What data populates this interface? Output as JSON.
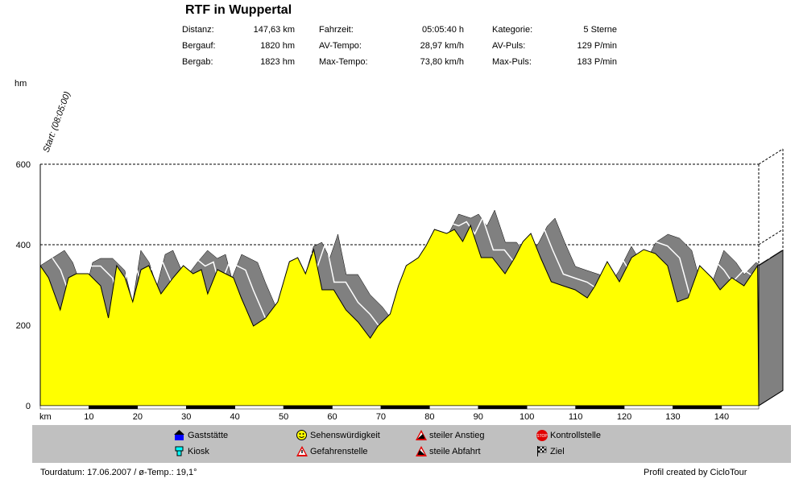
{
  "header": {
    "title": "RTF in Wuppertal",
    "stats": [
      [
        {
          "label": "Distanz:",
          "value": "147,63 km"
        },
        {
          "label": "Fahrzeit:",
          "value": "05:05:40 h"
        },
        {
          "label": "Kategorie:",
          "value": "5 Sterne"
        }
      ],
      [
        {
          "label": "Bergauf:",
          "value": "1820 hm"
        },
        {
          "label": "AV-Tempo:",
          "value": "28,97 km/h"
        },
        {
          "label": "AV-Puls:",
          "value": "129 P/min"
        }
      ],
      [
        {
          "label": "Bergab:",
          "value": "1823 hm"
        },
        {
          "label": "Max-Tempo:",
          "value": "73,80 km/h"
        },
        {
          "label": "Max-Puls:",
          "value": "183 P/min"
        }
      ]
    ]
  },
  "chart_data": {
    "type": "area",
    "title": "RTF in Wuppertal",
    "xlabel": "km",
    "ylabel": "hm",
    "xlim": [
      0,
      147.63
    ],
    "ylim": [
      0,
      600
    ],
    "xticks": [
      10,
      20,
      30,
      40,
      50,
      60,
      70,
      80,
      90,
      100,
      110,
      120,
      130,
      140
    ],
    "yticks": [
      0,
      200,
      400,
      600
    ],
    "annotation": "Start: (08:05:00)",
    "x": [
      0,
      1.7,
      4.1,
      5.8,
      7.4,
      9.9,
      12.4,
      14.0,
      15.7,
      17.4,
      19.0,
      20.7,
      22.3,
      24.8,
      27.3,
      29.4,
      31.4,
      33.1,
      34.4,
      36.4,
      39.7,
      41.3,
      43.8,
      46.3,
      48.8,
      51.2,
      52.9,
      54.5,
      56.2,
      57.9,
      60.3,
      62.8,
      65.3,
      67.8,
      69.4,
      71.9,
      73.6,
      75.2,
      77.7,
      79.3,
      81.0,
      83.5,
      85.1,
      86.8,
      88.4,
      90.6,
      92.9,
      95.5,
      97.5,
      99.2,
      100.8,
      102.8,
      105.0,
      107.4,
      109.9,
      112.4,
      114.0,
      116.5,
      119.0,
      121.5,
      124.0,
      126.4,
      128.9,
      130.9,
      133.1,
      135.5,
      138.0,
      139.7,
      142.1,
      144.6,
      147.4
    ],
    "y": [
      348,
      318,
      238,
      318,
      328,
      328,
      298,
      218,
      348,
      318,
      258,
      338,
      348,
      278,
      318,
      348,
      328,
      338,
      278,
      338,
      318,
      268,
      198,
      218,
      258,
      358,
      368,
      328,
      388,
      288,
      288,
      238,
      208,
      168,
      198,
      228,
      298,
      348,
      368,
      398,
      438,
      428,
      438,
      408,
      448,
      368,
      368,
      328,
      368,
      408,
      428,
      368,
      308,
      298,
      288,
      268,
      298,
      358,
      308,
      368,
      388,
      378,
      348,
      258,
      268,
      348,
      318,
      288,
      318,
      298,
      348
    ],
    "colors": {
      "fill": "#ffff00",
      "shadow": "#808080"
    }
  },
  "legend": [
    {
      "label": "Gaststätte",
      "icon": "house-icon"
    },
    {
      "label": "Sehenswürdigkeit",
      "icon": "smiley-icon"
    },
    {
      "label": "steiler Anstieg",
      "icon": "steep-climb-icon"
    },
    {
      "label": "Kontrollstelle",
      "icon": "stop-sign-icon"
    },
    {
      "label": "Kiosk",
      "icon": "cup-icon"
    },
    {
      "label": "Gefahrenstelle",
      "icon": "warning-icon"
    },
    {
      "label": "steile Abfahrt",
      "icon": "steep-descent-icon"
    },
    {
      "label": "Ziel",
      "icon": "checkered-flag-icon"
    }
  ],
  "footer": {
    "left": "Tourdatum: 17.06.2007  /  ø-Temp.: 19,1°",
    "right": "Profil created by CicloTour"
  }
}
